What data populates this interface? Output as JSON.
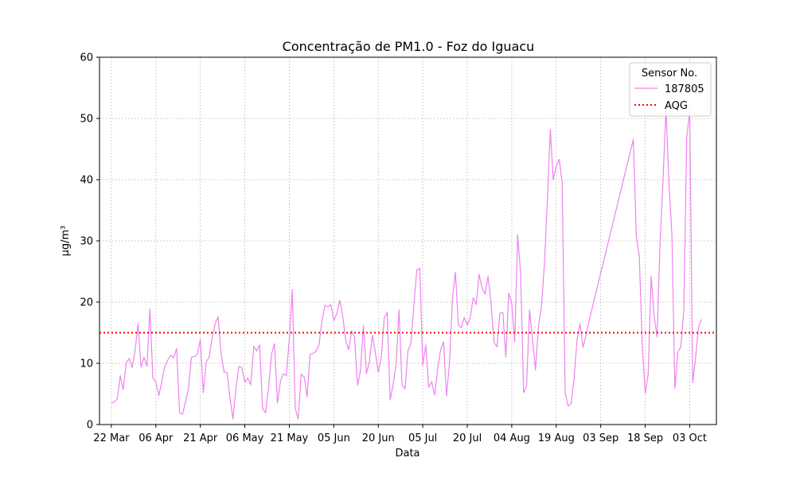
{
  "chart_data": {
    "type": "line",
    "title": "Concentração de PM1.0 - Foz do Iguacu",
    "xlabel": "Data",
    "ylabel": "μg/m³",
    "ylim": [
      0,
      60
    ],
    "yticks": [
      0,
      10,
      20,
      30,
      40,
      50,
      60
    ],
    "xlim": [
      "2021-03-18",
      "2021-10-12"
    ],
    "xticks": [
      {
        "date": "2021-03-22",
        "label": "22 Mar"
      },
      {
        "date": "2021-04-06",
        "label": "06 Apr"
      },
      {
        "date": "2021-04-21",
        "label": "21 Apr"
      },
      {
        "date": "2021-05-06",
        "label": "06 May"
      },
      {
        "date": "2021-05-21",
        "label": "21 May"
      },
      {
        "date": "2021-06-05",
        "label": "05 Jun"
      },
      {
        "date": "2021-06-20",
        "label": "20 Jun"
      },
      {
        "date": "2021-07-05",
        "label": "05 Jul"
      },
      {
        "date": "2021-07-20",
        "label": "20 Jul"
      },
      {
        "date": "2021-08-04",
        "label": "04 Aug"
      },
      {
        "date": "2021-08-19",
        "label": "19 Aug"
      },
      {
        "date": "2021-09-03",
        "label": "03 Sep"
      },
      {
        "date": "2021-09-18",
        "label": "18 Sep"
      },
      {
        "date": "2021-10-03",
        "label": "03 Oct"
      }
    ],
    "grid": true,
    "legend": {
      "title": "Sensor No.",
      "placement": "top-right"
    },
    "series": [
      {
        "name": "187805",
        "color": "#ee82ee",
        "style": "solid",
        "points": [
          [
            "2021-03-22",
            3.5
          ],
          [
            "2021-03-23",
            3.7
          ],
          [
            "2021-03-24",
            4.2
          ],
          [
            "2021-03-25",
            8.0
          ],
          [
            "2021-03-26",
            5.7
          ],
          [
            "2021-03-27",
            10.0
          ],
          [
            "2021-03-28",
            10.8
          ],
          [
            "2021-03-29",
            9.3
          ],
          [
            "2021-03-30",
            12.0
          ],
          [
            "2021-03-31",
            16.5
          ],
          [
            "2021-04-01",
            9.4
          ],
          [
            "2021-04-02",
            11.0
          ],
          [
            "2021-04-03",
            9.5
          ],
          [
            "2021-04-04",
            18.9
          ],
          [
            "2021-04-05",
            7.6
          ],
          [
            "2021-04-06",
            7.0
          ],
          [
            "2021-04-07",
            4.7
          ],
          [
            "2021-04-08",
            7.0
          ],
          [
            "2021-04-09",
            9.5
          ],
          [
            "2021-04-10",
            10.5
          ],
          [
            "2021-04-11",
            11.3
          ],
          [
            "2021-04-12",
            10.9
          ],
          [
            "2021-04-13",
            12.4
          ],
          [
            "2021-04-14",
            1.9
          ],
          [
            "2021-04-15",
            1.7
          ],
          [
            "2021-04-16",
            3.7
          ],
          [
            "2021-04-17",
            5.9
          ],
          [
            "2021-04-18",
            11.0
          ],
          [
            "2021-04-19",
            11.1
          ],
          [
            "2021-04-20",
            11.5
          ],
          [
            "2021-04-21",
            13.9
          ],
          [
            "2021-04-22",
            5.2
          ],
          [
            "2021-04-23",
            10.3
          ],
          [
            "2021-04-24",
            11.0
          ],
          [
            "2021-04-25",
            14.3
          ],
          [
            "2021-04-26",
            16.5
          ],
          [
            "2021-04-27",
            17.6
          ],
          [
            "2021-04-28",
            11.5
          ],
          [
            "2021-04-29",
            8.6
          ],
          [
            "2021-04-30",
            8.5
          ],
          [
            "2021-05-01",
            4.4
          ],
          [
            "2021-05-02",
            0.9
          ],
          [
            "2021-05-03",
            5.9
          ],
          [
            "2021-05-04",
            9.5
          ],
          [
            "2021-05-05",
            9.3
          ],
          [
            "2021-05-06",
            6.9
          ],
          [
            "2021-05-07",
            7.6
          ],
          [
            "2021-05-08",
            6.5
          ],
          [
            "2021-05-09",
            12.8
          ],
          [
            "2021-05-10",
            12.0
          ],
          [
            "2021-05-11",
            13.0
          ],
          [
            "2021-05-12",
            2.6
          ],
          [
            "2021-05-13",
            1.9
          ],
          [
            "2021-05-14",
            6.0
          ],
          [
            "2021-05-15",
            11.5
          ],
          [
            "2021-05-16",
            13.2
          ],
          [
            "2021-05-17",
            3.5
          ],
          [
            "2021-05-18",
            7.0
          ],
          [
            "2021-05-19",
            8.3
          ],
          [
            "2021-05-20",
            8.0
          ],
          [
            "2021-05-21",
            14.0
          ],
          [
            "2021-05-22",
            22.0
          ],
          [
            "2021-05-23",
            2.6
          ],
          [
            "2021-05-24",
            0.9
          ],
          [
            "2021-05-25",
            8.2
          ],
          [
            "2021-05-26",
            7.8
          ],
          [
            "2021-05-27",
            4.5
          ],
          [
            "2021-05-28",
            11.5
          ],
          [
            "2021-05-29",
            11.6
          ],
          [
            "2021-05-30",
            12.0
          ],
          [
            "2021-05-31",
            13.0
          ],
          [
            "2021-06-01",
            16.8
          ],
          [
            "2021-06-02",
            19.5
          ],
          [
            "2021-06-03",
            19.2
          ],
          [
            "2021-06-04",
            19.6
          ],
          [
            "2021-06-05",
            17.0
          ],
          [
            "2021-06-06",
            18.1
          ],
          [
            "2021-06-07",
            20.3
          ],
          [
            "2021-06-08",
            17.8
          ],
          [
            "2021-06-09",
            13.8
          ],
          [
            "2021-06-10",
            12.2
          ],
          [
            "2021-06-11",
            15.3
          ],
          [
            "2021-06-12",
            14.2
          ],
          [
            "2021-06-13",
            6.4
          ],
          [
            "2021-06-14",
            8.8
          ],
          [
            "2021-06-15",
            16.2
          ],
          [
            "2021-06-16",
            8.3
          ],
          [
            "2021-06-17",
            10.2
          ],
          [
            "2021-06-18",
            14.6
          ],
          [
            "2021-06-19",
            11.8
          ],
          [
            "2021-06-20",
            8.5
          ],
          [
            "2021-06-21",
            10.9
          ],
          [
            "2021-06-22",
            17.4
          ],
          [
            "2021-06-23",
            18.3
          ],
          [
            "2021-06-24",
            4.0
          ],
          [
            "2021-06-25",
            6.5
          ],
          [
            "2021-06-26",
            10.0
          ],
          [
            "2021-06-27",
            18.7
          ],
          [
            "2021-06-28",
            6.5
          ],
          [
            "2021-06-29",
            5.8
          ],
          [
            "2021-06-30",
            12.0
          ],
          [
            "2021-07-01",
            13.3
          ],
          [
            "2021-07-02",
            19.5
          ],
          [
            "2021-07-03",
            25.3
          ],
          [
            "2021-07-04",
            25.5
          ],
          [
            "2021-07-05",
            9.7
          ],
          [
            "2021-07-06",
            13.0
          ],
          [
            "2021-07-07",
            6.1
          ],
          [
            "2021-07-08",
            7.0
          ],
          [
            "2021-07-09",
            4.8
          ],
          [
            "2021-07-10",
            9.0
          ],
          [
            "2021-07-11",
            12.2
          ],
          [
            "2021-07-12",
            13.5
          ],
          [
            "2021-07-13",
            4.7
          ],
          [
            "2021-07-14",
            10.0
          ],
          [
            "2021-07-15",
            20.5
          ],
          [
            "2021-07-16",
            24.9
          ],
          [
            "2021-07-17",
            16.3
          ],
          [
            "2021-07-18",
            15.8
          ],
          [
            "2021-07-19",
            17.5
          ],
          [
            "2021-07-20",
            16.2
          ],
          [
            "2021-07-21",
            17.5
          ],
          [
            "2021-07-22",
            20.7
          ],
          [
            "2021-07-23",
            19.6
          ],
          [
            "2021-07-24",
            24.5
          ],
          [
            "2021-07-25",
            22.3
          ],
          [
            "2021-07-26",
            21.3
          ],
          [
            "2021-07-27",
            24.2
          ],
          [
            "2021-07-28",
            20.0
          ],
          [
            "2021-07-29",
            13.5
          ],
          [
            "2021-07-30",
            12.7
          ],
          [
            "2021-07-31",
            18.2
          ],
          [
            "2021-08-01",
            18.3
          ],
          [
            "2021-08-02",
            11.0
          ],
          [
            "2021-08-03",
            21.5
          ],
          [
            "2021-08-04",
            19.8
          ],
          [
            "2021-08-05",
            13.5
          ],
          [
            "2021-08-06",
            31.0
          ],
          [
            "2021-08-07",
            24.5
          ],
          [
            "2021-08-08",
            5.2
          ],
          [
            "2021-08-09",
            6.3
          ],
          [
            "2021-08-10",
            18.7
          ],
          [
            "2021-08-11",
            14.0
          ],
          [
            "2021-08-12",
            8.9
          ],
          [
            "2021-08-13",
            16.0
          ],
          [
            "2021-08-14",
            19.3
          ],
          [
            "2021-08-15",
            26.0
          ],
          [
            "2021-08-16",
            36.5
          ],
          [
            "2021-08-17",
            48.2
          ],
          [
            "2021-08-18",
            40.0
          ],
          [
            "2021-08-19",
            42.2
          ],
          [
            "2021-08-20",
            43.3
          ],
          [
            "2021-08-21",
            39.5
          ],
          [
            "2021-08-22",
            5.2
          ],
          [
            "2021-08-23",
            3.0
          ],
          [
            "2021-08-24",
            3.4
          ],
          [
            "2021-08-25",
            7.5
          ],
          [
            "2021-08-26",
            13.8
          ],
          [
            "2021-08-27",
            16.5
          ],
          [
            "2021-08-28",
            12.6
          ],
          [
            "2021-08-29",
            14.5
          ],
          [
            "2021-08-30",
            16.8
          ],
          [
            "2021-09-14",
            46.6
          ],
          [
            "2021-09-15",
            30.8
          ],
          [
            "2021-09-16",
            27.5
          ],
          [
            "2021-09-17",
            13.0
          ],
          [
            "2021-09-18",
            5.1
          ],
          [
            "2021-09-19",
            8.2
          ],
          [
            "2021-09-20",
            24.2
          ],
          [
            "2021-09-21",
            17.8
          ],
          [
            "2021-09-22",
            14.3
          ],
          [
            "2021-09-23",
            29.5
          ],
          [
            "2021-09-24",
            40.0
          ],
          [
            "2021-09-25",
            51.5
          ],
          [
            "2021-09-26",
            39.5
          ],
          [
            "2021-09-27",
            31.0
          ],
          [
            "2021-09-28",
            5.9
          ],
          [
            "2021-09-29",
            11.8
          ],
          [
            "2021-09-30",
            12.7
          ],
          [
            "2021-10-01",
            18.5
          ],
          [
            "2021-10-02",
            46.9
          ],
          [
            "2021-10-03",
            51.2
          ],
          [
            "2021-10-04",
            6.8
          ],
          [
            "2021-10-05",
            11.0
          ],
          [
            "2021-10-06",
            16.0
          ],
          [
            "2021-10-07",
            17.2
          ]
        ]
      },
      {
        "name": "AQG",
        "color": "#ff0000",
        "style": "dotted",
        "value": 15
      }
    ]
  }
}
